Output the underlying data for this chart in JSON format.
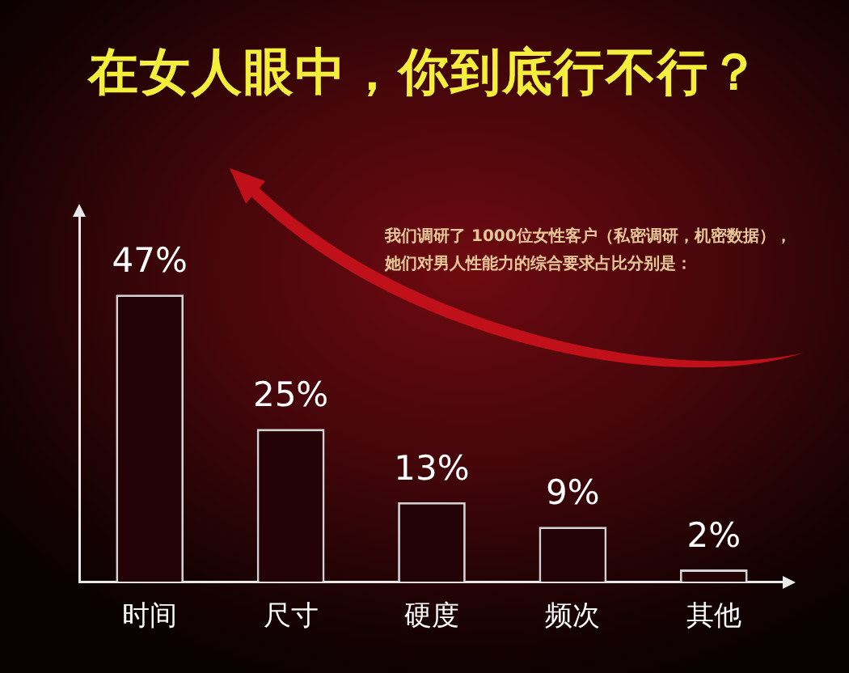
{
  "chart_data": {
    "type": "bar",
    "title": "在女人眼中，你到底行不行？",
    "annotations": [
      "我们调研了 1000位女性客户（私密调研，机密数据），",
      "她们对男人性能力的综合要求占比分别是："
    ],
    "categories": [
      "时间",
      "尺寸",
      "硬度",
      "频次",
      "其他"
    ],
    "values": [
      47,
      25,
      13,
      9,
      2
    ],
    "value_labels": [
      "47%",
      "25%",
      "13%",
      "9%",
      "2%"
    ],
    "color": "#230305",
    "tick_labels": "x"
  }
}
